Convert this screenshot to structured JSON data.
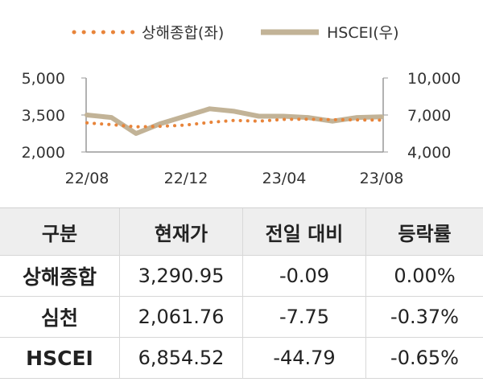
{
  "chart_data": {
    "type": "line",
    "legend_position": "top",
    "grid": false,
    "x_ticks": [
      "22/08",
      "22/12",
      "23/04",
      "23/08"
    ],
    "y_left": {
      "ticks": [
        "5,000",
        "3,500",
        "2,000"
      ],
      "range": [
        2000,
        5000
      ]
    },
    "y_right": {
      "ticks": [
        "10,000",
        "7,000",
        "4,000"
      ],
      "range": [
        4000,
        10000
      ]
    },
    "series": [
      {
        "name": "상해종합(좌)",
        "axis": "left",
        "style": "dotted",
        "color": "#e8843a",
        "x": [
          "22/08",
          "22/09",
          "22/10",
          "22/11",
          "22/12",
          "23/01",
          "23/02",
          "23/03",
          "23/04",
          "23/05",
          "23/06",
          "23/07",
          "23/08"
        ],
        "values": [
          3180,
          3110,
          3020,
          3040,
          3090,
          3200,
          3280,
          3250,
          3320,
          3330,
          3310,
          3300,
          3290
        ]
      },
      {
        "name": "HSCEI(우)",
        "axis": "right",
        "style": "solid",
        "color": "#c2b397",
        "x": [
          "22/08",
          "22/09",
          "22/10",
          "22/11",
          "22/12",
          "23/01",
          "23/02",
          "23/03",
          "23/04",
          "23/05",
          "23/06",
          "23/07",
          "23/08"
        ],
        "values": [
          7000,
          6800,
          5500,
          6300,
          6900,
          7500,
          7300,
          6900,
          6900,
          6800,
          6500,
          6800,
          6850
        ]
      }
    ]
  },
  "table": {
    "headers": [
      "구분",
      "현재가",
      "전일 대비",
      "등락률"
    ],
    "rows": [
      [
        "상해종합",
        "3,290.95",
        "-0.09",
        "0.00%"
      ],
      [
        "심천",
        "2,061.76",
        "-7.75",
        "-0.37%"
      ],
      [
        "HSCEI",
        "6,854.52",
        "-44.79",
        "-0.65%"
      ]
    ]
  }
}
